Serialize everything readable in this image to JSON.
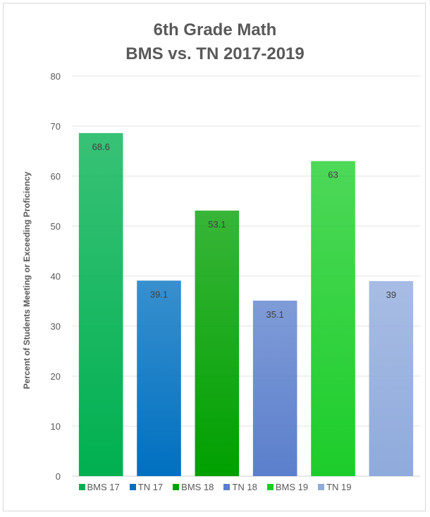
{
  "chart_data": {
    "type": "bar",
    "title": [
      "6th Grade Math",
      "BMS vs. TN 2017-2019"
    ],
    "ylabel": "Percent of Students Meeting or Exceeding Proficiency",
    "ylim": [
      0,
      80
    ],
    "yticks": [
      0,
      10,
      20,
      30,
      40,
      50,
      60,
      70,
      80
    ],
    "grid": true,
    "legend_position": "bottom",
    "categories": [
      "BMS 17",
      "TN 17",
      "BMS 18",
      "TN 18",
      "BMS 19",
      "TN 19"
    ],
    "values": [
      68.6,
      39.1,
      53.1,
      35.1,
      63,
      39
    ],
    "data_labels": [
      "68.6",
      "39.1",
      "53.1",
      "35.1",
      "63",
      "39"
    ],
    "colors": [
      "#00b050",
      "#0070c0",
      "#00a000",
      "#5b7fcc",
      "#1ccd2a",
      "#8faadc"
    ]
  }
}
